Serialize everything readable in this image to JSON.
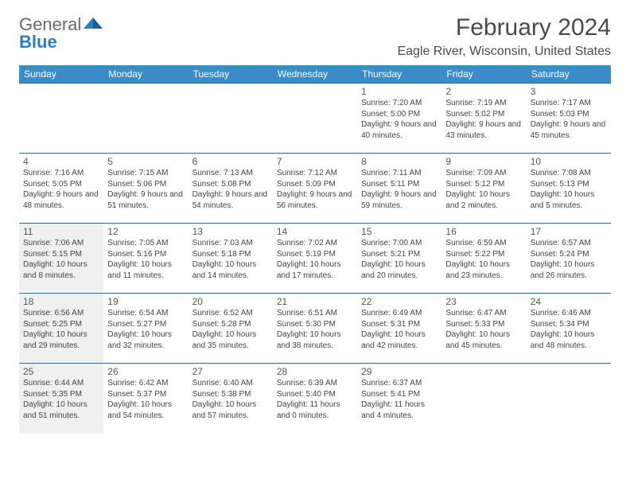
{
  "brand": {
    "word1": "General",
    "word2": "Blue"
  },
  "title": "February 2024",
  "location": "Eagle River, Wisconsin, United States",
  "colors": {
    "header_bg": "#3b8bc9",
    "header_text": "#ffffff",
    "row_divider": "#2e6da4",
    "shaded_cell": "#f0f0f0",
    "logo_gray": "#6a6a6a",
    "logo_blue": "#2a7fc9",
    "body_text": "#444444",
    "title_text": "#4a4a4a"
  },
  "typography": {
    "month_title_size": 30,
    "location_size": 16,
    "dayname_size": 12,
    "daynum_size": 12,
    "info_size": 10
  },
  "day_names": [
    "Sunday",
    "Monday",
    "Tuesday",
    "Wednesday",
    "Thursday",
    "Friday",
    "Saturday"
  ],
  "weeks": [
    [
      null,
      null,
      null,
      null,
      {
        "n": "1",
        "sr": "7:20 AM",
        "ss": "5:00 PM",
        "dl": "9 hours and 40 minutes."
      },
      {
        "n": "2",
        "sr": "7:19 AM",
        "ss": "5:02 PM",
        "dl": "9 hours and 43 minutes."
      },
      {
        "n": "3",
        "sr": "7:17 AM",
        "ss": "5:03 PM",
        "dl": "9 hours and 45 minutes."
      }
    ],
    [
      {
        "n": "4",
        "sr": "7:16 AM",
        "ss": "5:05 PM",
        "dl": "9 hours and 48 minutes."
      },
      {
        "n": "5",
        "sr": "7:15 AM",
        "ss": "5:06 PM",
        "dl": "9 hours and 51 minutes."
      },
      {
        "n": "6",
        "sr": "7:13 AM",
        "ss": "5:08 PM",
        "dl": "9 hours and 54 minutes."
      },
      {
        "n": "7",
        "sr": "7:12 AM",
        "ss": "5:09 PM",
        "dl": "9 hours and 56 minutes."
      },
      {
        "n": "8",
        "sr": "7:11 AM",
        "ss": "5:11 PM",
        "dl": "9 hours and 59 minutes."
      },
      {
        "n": "9",
        "sr": "7:09 AM",
        "ss": "5:12 PM",
        "dl": "10 hours and 2 minutes."
      },
      {
        "n": "10",
        "sr": "7:08 AM",
        "ss": "5:13 PM",
        "dl": "10 hours and 5 minutes."
      }
    ],
    [
      {
        "n": "11",
        "sr": "7:06 AM",
        "ss": "5:15 PM",
        "dl": "10 hours and 8 minutes.",
        "shaded": true
      },
      {
        "n": "12",
        "sr": "7:05 AM",
        "ss": "5:16 PM",
        "dl": "10 hours and 11 minutes."
      },
      {
        "n": "13",
        "sr": "7:03 AM",
        "ss": "5:18 PM",
        "dl": "10 hours and 14 minutes."
      },
      {
        "n": "14",
        "sr": "7:02 AM",
        "ss": "5:19 PM",
        "dl": "10 hours and 17 minutes."
      },
      {
        "n": "15",
        "sr": "7:00 AM",
        "ss": "5:21 PM",
        "dl": "10 hours and 20 minutes."
      },
      {
        "n": "16",
        "sr": "6:59 AM",
        "ss": "5:22 PM",
        "dl": "10 hours and 23 minutes."
      },
      {
        "n": "17",
        "sr": "6:57 AM",
        "ss": "5:24 PM",
        "dl": "10 hours and 26 minutes."
      }
    ],
    [
      {
        "n": "18",
        "sr": "6:56 AM",
        "ss": "5:25 PM",
        "dl": "10 hours and 29 minutes.",
        "shaded": true
      },
      {
        "n": "19",
        "sr": "6:54 AM",
        "ss": "5:27 PM",
        "dl": "10 hours and 32 minutes."
      },
      {
        "n": "20",
        "sr": "6:52 AM",
        "ss": "5:28 PM",
        "dl": "10 hours and 35 minutes."
      },
      {
        "n": "21",
        "sr": "6:51 AM",
        "ss": "5:30 PM",
        "dl": "10 hours and 38 minutes."
      },
      {
        "n": "22",
        "sr": "6:49 AM",
        "ss": "5:31 PM",
        "dl": "10 hours and 42 minutes."
      },
      {
        "n": "23",
        "sr": "6:47 AM",
        "ss": "5:33 PM",
        "dl": "10 hours and 45 minutes."
      },
      {
        "n": "24",
        "sr": "6:46 AM",
        "ss": "5:34 PM",
        "dl": "10 hours and 48 minutes."
      }
    ],
    [
      {
        "n": "25",
        "sr": "6:44 AM",
        "ss": "5:35 PM",
        "dl": "10 hours and 51 minutes.",
        "shaded": true
      },
      {
        "n": "26",
        "sr": "6:42 AM",
        "ss": "5:37 PM",
        "dl": "10 hours and 54 minutes."
      },
      {
        "n": "27",
        "sr": "6:40 AM",
        "ss": "5:38 PM",
        "dl": "10 hours and 57 minutes."
      },
      {
        "n": "28",
        "sr": "6:39 AM",
        "ss": "5:40 PM",
        "dl": "11 hours and 0 minutes."
      },
      {
        "n": "29",
        "sr": "6:37 AM",
        "ss": "5:41 PM",
        "dl": "11 hours and 4 minutes."
      },
      null,
      null
    ]
  ],
  "labels": {
    "sunrise": "Sunrise:",
    "sunset": "Sunset:",
    "daylight": "Daylight:"
  }
}
